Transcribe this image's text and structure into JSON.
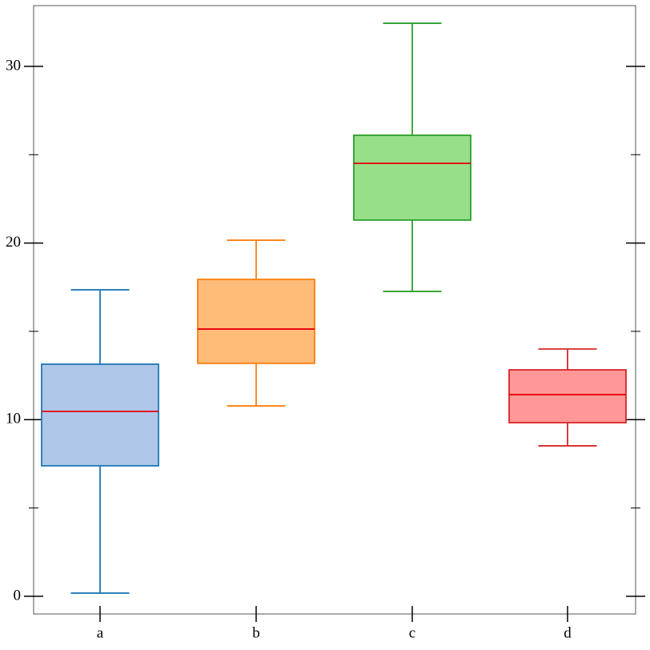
{
  "chart_data": {
    "type": "box",
    "categories": [
      "a",
      "b",
      "c",
      "d"
    ],
    "boxes": [
      {
        "color": "#1f77b4",
        "fill": "#aec7e8",
        "low": 0.18,
        "q1": 7.39,
        "median": 10.47,
        "q3": 13.14,
        "high": 17.35
      },
      {
        "color": "#ff7f0e",
        "fill": "#ffbb78",
        "low": 10.78,
        "q1": 13.19,
        "median": 15.13,
        "q3": 17.94,
        "high": 20.16
      },
      {
        "color": "#2ca02c",
        "fill": "#98df8a",
        "low": 17.26,
        "q1": 21.3,
        "median": 24.51,
        "q3": 26.1,
        "high": 32.44
      },
      {
        "color": "#d62728",
        "fill": "#ff9896",
        "low": 8.52,
        "q1": 9.83,
        "median": 11.42,
        "q3": 12.82,
        "high": 14.0
      }
    ],
    "median_color": "#e8000b",
    "ylim": [
      -1,
      33.44
    ],
    "yticks": [
      0,
      10,
      20,
      30
    ],
    "minor_yticks": [
      5,
      15,
      25
    ]
  }
}
